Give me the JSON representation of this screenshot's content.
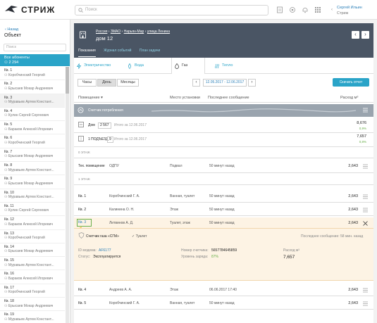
{
  "app": {
    "name": "СТРИЖ",
    "search_placeholder": "Поиск",
    "user_name": "Сергей Ильин",
    "user_org": "Стриж",
    "accent": "#2aa4c8",
    "header_bg": "#4a5564"
  },
  "sidebar": {
    "back": "Назад",
    "title": "Объект",
    "search_placeholder": "Поиск",
    "all_label": "Все абоненты",
    "all_count": "2 294",
    "items": [
      {
        "label": "Кв. 1",
        "name": "Коробчинский Георгий"
      },
      {
        "label": "Кв. 2",
        "name": "Ерысаев Мокар Андреевич"
      },
      {
        "label": "Кв. 3",
        "name": "Муравьев Артем Констант..."
      },
      {
        "label": "Кв. 4",
        "name": "Кулин Сергей Сергеевич"
      },
      {
        "label": "Кв. 5",
        "name": "Бараков Алексей Игоревич"
      },
      {
        "label": "Кв. 6",
        "name": "Коробчинский Георгий"
      },
      {
        "label": "Кв. 7",
        "name": "Ерысаев Мокар Андреевич"
      },
      {
        "label": "Кв. 8",
        "name": "Муравьев Артем Констант..."
      },
      {
        "label": "Кв. 9",
        "name": "Ерысаев Мокар Андреевич"
      },
      {
        "label": "Кв. 10",
        "name": "Муравьев Артем Констант..."
      },
      {
        "label": "Кв. 11",
        "name": "Кулин Сергей Сергеевич"
      },
      {
        "label": "Кв. 12",
        "name": "Бараков Алексей Игоревич"
      },
      {
        "label": "Кв. 13",
        "name": "Коробчинский Георгий"
      },
      {
        "label": "Кв. 14",
        "name": "Ерысаев Мокар Андреевич"
      },
      {
        "label": "Кв. 15",
        "name": "Муравьев Артем Констант..."
      },
      {
        "label": "Кв. 16",
        "name": "Бараков Алексей Игоревич"
      },
      {
        "label": "Кв. 17",
        "name": "Коробчинский Георгий"
      },
      {
        "label": "Кв. 18",
        "name": "Ерысаев Мокар Андреевич"
      },
      {
        "label": "Кв. 19",
        "name": "Муравьев Артем Констант..."
      }
    ]
  },
  "header": {
    "crumbs": [
      "Россия",
      "ЗМАО",
      "Нарьян-Мар",
      "улица Ленина"
    ],
    "title": "дом 12",
    "tabs": [
      "Показания",
      "Журнал событий",
      "План задачи"
    ],
    "resources": [
      "Электричество",
      "Вода",
      "Газ",
      "Тепло"
    ]
  },
  "controls": {
    "hours": "Часы",
    "day": "День",
    "months": "Месяцы",
    "range": "12.05.2017 - 12.06.2017",
    "download": "Скачать отчет"
  },
  "table": {
    "headers": {
      "room": "Помещение",
      "place": "Место установки",
      "last": "Последнее сообщение",
      "usage": "Расход м³"
    },
    "group": "Счетчик потребления",
    "house": {
      "label": "Дом",
      "count": "2 567",
      "total": "Итого за 12.06.2017",
      "value": "8,676",
      "pct": "0,9%"
    },
    "entrance": {
      "label": "1 ПОДЪЕЗД",
      "count": "9",
      "total": "Итого за 12.06.2017",
      "value": "7,657",
      "pct": "0,8%"
    },
    "floor0": "0 ЭТАЖ",
    "tech": {
      "room": "Тех. помещение",
      "owner": "ОДПУ",
      "place": "Подвал",
      "last": "50 минут назад",
      "value": "2,643"
    },
    "floor1": "1 ЭТАЖ",
    "rows": [
      {
        "room": "Кв. 1",
        "owner": "Коробчинский Г. А.",
        "place": "Ванная, туалет",
        "last": "50 минут назад",
        "value": "2,643"
      },
      {
        "room": "Кв. 2",
        "owner": "Калинина О. Н.",
        "place": "Этаж",
        "last": "50 минут назад",
        "value": "2,643"
      },
      {
        "room": "Кв. 3",
        "owner": "Литвинов А. Д.",
        "place": "Туалет, этаж",
        "last": "50 минут назад",
        "value": "2,643"
      },
      {
        "room": "Кв. 4",
        "owner": "Андреев А. А.",
        "place": "Этаж",
        "last": "06.06.2017 17:40",
        "value": "2,643"
      },
      {
        "room": "Кв. 5",
        "owner": "Коробчинский Г. А.",
        "place": "Ванная, туалет",
        "last": "50 минут назад",
        "value": "2,643"
      }
    ],
    "detail": {
      "meter": "Счетчик газа «СГМ»",
      "place": "Туалет",
      "last": "Последнее сообщение:  58 мин. назад",
      "id_label": "ID модема:",
      "id_value": "AF6177",
      "status_label": "Статус:",
      "status_value": "Эксплуатируется",
      "serial_label": "Номер счетчика:",
      "serial_value": "5657784645859",
      "charge_label": "Уровень заряда:",
      "charge_value": "87%",
      "usage_label": "Расход м³",
      "usage_value": "7,657"
    }
  }
}
